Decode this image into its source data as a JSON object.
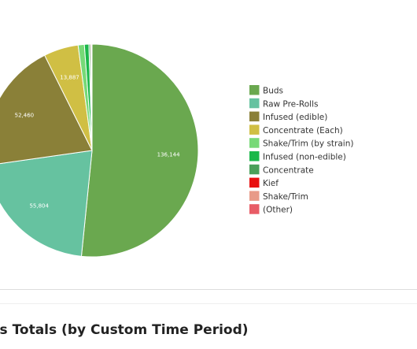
{
  "chart_data": {
    "type": "pie",
    "slices": [
      {
        "label": "Buds",
        "value": 136144,
        "display": "136,144",
        "color": "#6aa84f"
      },
      {
        "label": "Raw Pre-Rolls",
        "value": 55804,
        "display": "55,804",
        "color": "#66c2a0"
      },
      {
        "label": "Infused (edible)",
        "value": 52460,
        "display": "52,460",
        "color": "#8a8038"
      },
      {
        "label": "Concentrate (Each)",
        "value": 13887,
        "display": "13,887",
        "color": "#d0bf44"
      },
      {
        "label": "Shake/Trim (by strain)",
        "value": 2500,
        "display": "",
        "color": "#77d977"
      },
      {
        "label": "Infused (non-edible)",
        "value": 1800,
        "display": "",
        "color": "#1ab84a"
      },
      {
        "label": "Concentrate",
        "value": 600,
        "display": "",
        "color": "#4aa05a"
      },
      {
        "label": "Kief",
        "value": 400,
        "display": "",
        "color": "#e81010"
      },
      {
        "label": "Shake/Trim",
        "value": 150,
        "display": "",
        "color": "#e89a88"
      },
      {
        "label": "(Other)",
        "value": 100,
        "display": "",
        "color": "#e85c66"
      }
    ],
    "legend_position": "right"
  },
  "section": {
    "title": "es Totals (by Custom Time Period)"
  }
}
